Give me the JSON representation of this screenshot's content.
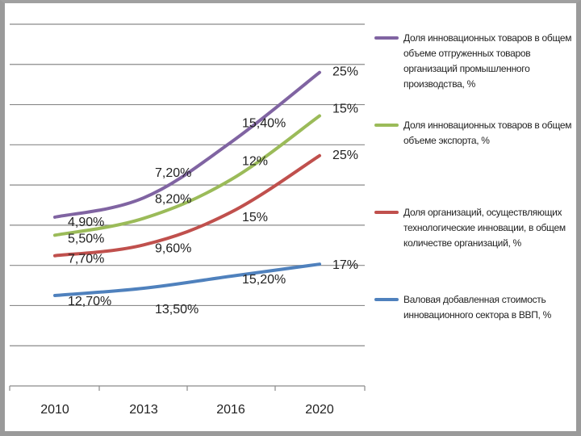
{
  "chart_data": {
    "type": "line",
    "categories": [
      "2010",
      "2013",
      "2016",
      "2020"
    ],
    "series": [
      {
        "name": "Доля инновационных товаров в общем объеме отгруженных товаров организаций промышленного производства, %",
        "color": "#8064A2",
        "values": [
          0.4,
          0.56,
          1.02,
          1.6
        ],
        "labels": [
          "4,90%",
          "7,20%",
          "15,40%",
          "25%"
        ]
      },
      {
        "name": "Доля инновационных товаров в общем объеме экспорта, %",
        "color": "#9BBB59",
        "values": [
          0.25,
          0.39,
          0.71,
          1.24
        ],
        "labels": [
          "5,50%",
          "8,20%",
          "12%",
          "15%"
        ]
      },
      {
        "name": "Доля организаций, осуществляющих технологические инновации, в общем количестве организаций, %",
        "color": "#C0504D",
        "values": [
          0.08,
          0.17,
          0.44,
          0.91
        ],
        "labels": [
          "7,70%",
          "9,60%",
          "15%",
          "25%"
        ]
      },
      {
        "name": "Валовая добавленная стоимость инновационного сектора в ВВП, %",
        "color": "#4F81BD",
        "values": [
          -0.25,
          -0.19,
          -0.09,
          0.01
        ],
        "labels": [
          "12,70%",
          "13,50%",
          "15,20%",
          "17%"
        ]
      }
    ],
    "ylim": [
      -1.0,
      2.0
    ],
    "grid": true,
    "legend_position": "right"
  }
}
